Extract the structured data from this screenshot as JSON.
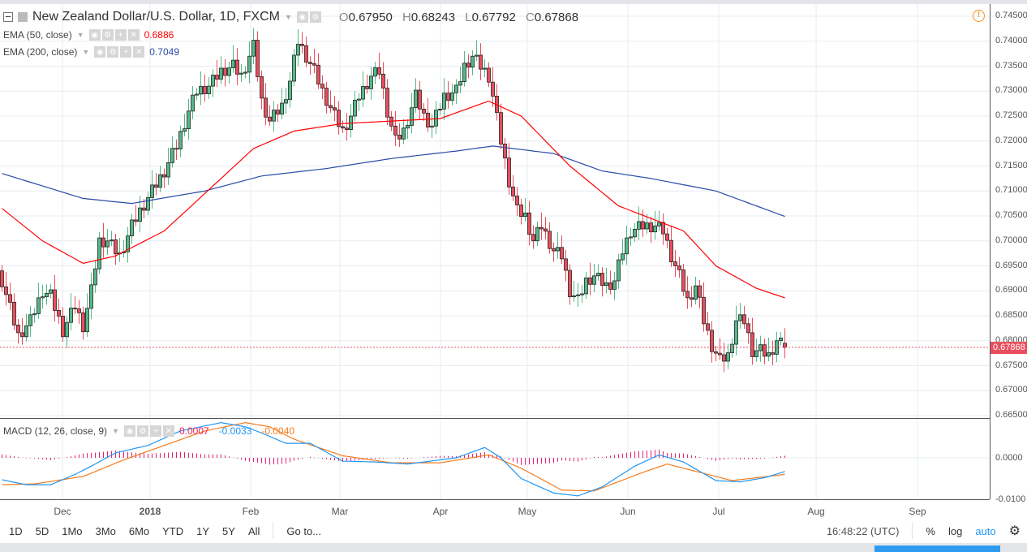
{
  "header": {
    "title": "New Zealand Dollar/U.S. Dollar, 1D, FXCM",
    "open_label": "O",
    "open": "0.67950",
    "high_label": "H",
    "high": "0.68243",
    "low_label": "L",
    "low": "0.67792",
    "close_label": "C",
    "close": "0.67868"
  },
  "indicators": {
    "ema50": {
      "label": "EMA (50, close)",
      "value": "0.6886",
      "color": "#f00"
    },
    "ema200": {
      "label": "EMA (200, close)",
      "value": "0.7049",
      "color": "#2a4ba6"
    },
    "macd": {
      "label": "MACD (12, 26, close, 9)",
      "hist": "0.0007",
      "macd": "-0.0033",
      "signal": "-0.0040"
    }
  },
  "colors": {
    "up": "#53b987",
    "down": "#eb4d5c",
    "macd": "#2196f3",
    "signal": "#f57c1f",
    "hist": "#ec1f6e"
  },
  "price_axis": [
    "0.74500",
    "0.74000",
    "0.73500",
    "0.73000",
    "0.72500",
    "0.72000",
    "0.71500",
    "0.71000",
    "0.70500",
    "0.70000",
    "0.69500",
    "0.69000",
    "0.68500",
    "0.68000",
    "0.67500",
    "0.67000",
    "0.66500"
  ],
  "macd_axis": [
    "0.0000",
    "-0.0100"
  ],
  "current_price": "0.67868",
  "time_axis": [
    "Dec",
    "2018",
    "Feb",
    "Mar",
    "Apr",
    "May",
    "Jun",
    "Jul",
    "Aug",
    "Sep"
  ],
  "toolbar": {
    "ranges": [
      "1D",
      "5D",
      "1Mo",
      "3Mo",
      "6Mo",
      "YTD",
      "1Y",
      "5Y",
      "All"
    ],
    "goto": "Go to...",
    "clock": "16:48:22 (UTC)",
    "percent": "%",
    "log": "log",
    "auto": "auto"
  },
  "chart_data": {
    "type": "candlestick",
    "note": "waypoints are [trading_day_index, price]",
    "close_waypoints": [
      [
        0,
        0.692
      ],
      [
        4,
        0.681
      ],
      [
        7,
        0.684
      ],
      [
        10,
        0.69
      ],
      [
        12,
        0.689
      ],
      [
        15,
        0.682
      ],
      [
        18,
        0.687
      ],
      [
        20,
        0.683
      ],
      [
        22,
        0.69
      ],
      [
        24,
        0.7
      ],
      [
        26,
        0.7
      ],
      [
        29,
        0.697
      ],
      [
        32,
        0.703
      ],
      [
        34,
        0.706
      ],
      [
        37,
        0.71
      ],
      [
        40,
        0.714
      ],
      [
        43,
        0.719
      ],
      [
        46,
        0.726
      ],
      [
        48,
        0.73
      ],
      [
        51,
        0.731
      ],
      [
        54,
        0.734
      ],
      [
        57,
        0.735
      ],
      [
        59,
        0.733
      ],
      [
        62,
        0.739
      ],
      [
        64,
        0.728
      ],
      [
        66,
        0.724
      ],
      [
        69,
        0.727
      ],
      [
        71,
        0.732
      ],
      [
        73,
        0.74
      ],
      [
        75,
        0.737
      ],
      [
        77,
        0.734
      ],
      [
        79,
        0.73
      ],
      [
        82,
        0.725
      ],
      [
        84,
        0.722
      ],
      [
        86,
        0.725
      ],
      [
        88,
        0.729
      ],
      [
        91,
        0.733
      ],
      [
        93,
        0.734
      ],
      [
        95,
        0.726
      ],
      [
        97,
        0.72
      ],
      [
        99,
        0.722
      ],
      [
        102,
        0.729
      ],
      [
        104,
        0.725
      ],
      [
        106,
        0.723
      ],
      [
        109,
        0.729
      ],
      [
        112,
        0.73
      ],
      [
        114,
        0.735
      ],
      [
        116,
        0.737
      ],
      [
        118,
        0.735
      ],
      [
        120,
        0.733
      ],
      [
        121,
        0.729
      ],
      [
        123,
        0.72
      ],
      [
        125,
        0.712
      ],
      [
        127,
        0.706
      ],
      [
        129,
        0.705
      ],
      [
        131,
        0.7
      ],
      [
        133,
        0.703
      ],
      [
        136,
        0.698
      ],
      [
        138,
        0.697
      ],
      [
        140,
        0.69
      ],
      [
        142,
        0.688
      ],
      [
        144,
        0.692
      ],
      [
        146,
        0.693
      ],
      [
        149,
        0.691
      ],
      [
        151,
        0.692
      ],
      [
        153,
        0.698
      ],
      [
        155,
        0.702
      ],
      [
        158,
        0.703
      ],
      [
        161,
        0.703
      ],
      [
        163,
        0.702
      ],
      [
        165,
        0.697
      ],
      [
        167,
        0.693
      ],
      [
        169,
        0.688
      ],
      [
        171,
        0.691
      ],
      [
        173,
        0.684
      ],
      [
        175,
        0.679
      ],
      [
        177,
        0.676
      ],
      [
        179,
        0.677
      ],
      [
        181,
        0.684
      ],
      [
        183,
        0.684
      ],
      [
        185,
        0.678
      ],
      [
        187,
        0.678
      ],
      [
        189,
        0.677
      ],
      [
        191,
        0.68
      ],
      [
        193,
        0.6787
      ]
    ],
    "ema50": [
      [
        0,
        0.7065
      ],
      [
        10,
        0.7
      ],
      [
        20,
        0.6955
      ],
      [
        28,
        0.697
      ],
      [
        40,
        0.702
      ],
      [
        52,
        0.711
      ],
      [
        62,
        0.7185
      ],
      [
        72,
        0.722
      ],
      [
        84,
        0.7235
      ],
      [
        96,
        0.724
      ],
      [
        108,
        0.7245
      ],
      [
        120,
        0.728
      ],
      [
        128,
        0.725
      ],
      [
        140,
        0.715
      ],
      [
        152,
        0.707
      ],
      [
        160,
        0.7045
      ],
      [
        168,
        0.702
      ],
      [
        176,
        0.695
      ],
      [
        186,
        0.6905
      ],
      [
        193,
        0.6886
      ]
    ],
    "ema200": [
      [
        0,
        0.7135
      ],
      [
        20,
        0.7085
      ],
      [
        32,
        0.7075
      ],
      [
        50,
        0.71
      ],
      [
        64,
        0.713
      ],
      [
        80,
        0.7145
      ],
      [
        96,
        0.7165
      ],
      [
        112,
        0.718
      ],
      [
        121,
        0.719
      ],
      [
        136,
        0.7175
      ],
      [
        148,
        0.714
      ],
      [
        160,
        0.7125
      ],
      [
        176,
        0.71
      ],
      [
        193,
        0.7049
      ]
    ],
    "macd_line": [
      [
        0,
        -0.0053
      ],
      [
        6,
        -0.0065
      ],
      [
        12,
        -0.0065
      ],
      [
        18,
        -0.004
      ],
      [
        22,
        -0.002
      ],
      [
        28,
        0.0012
      ],
      [
        36,
        0.003
      ],
      [
        44,
        0.0065
      ],
      [
        54,
        0.0085
      ],
      [
        60,
        0.0075
      ],
      [
        64,
        0.006
      ],
      [
        70,
        0.0035
      ],
      [
        76,
        0.0035
      ],
      [
        84,
        -0.0008
      ],
      [
        92,
        -0.001
      ],
      [
        100,
        -0.0015
      ],
      [
        112,
        0.0
      ],
      [
        119,
        0.0025
      ],
      [
        123,
        0.0
      ],
      [
        128,
        -0.005
      ],
      [
        136,
        -0.0085
      ],
      [
        142,
        -0.0092
      ],
      [
        148,
        -0.007
      ],
      [
        156,
        -0.002
      ],
      [
        162,
        0.0007
      ],
      [
        168,
        -0.001
      ],
      [
        176,
        -0.0055
      ],
      [
        182,
        -0.0058
      ],
      [
        188,
        -0.0048
      ],
      [
        193,
        -0.0033
      ]
    ],
    "signal_line": [
      [
        0,
        -0.0065
      ],
      [
        8,
        -0.0063
      ],
      [
        20,
        -0.0045
      ],
      [
        30,
        -0.0005
      ],
      [
        40,
        0.003
      ],
      [
        50,
        0.0065
      ],
      [
        60,
        0.0085
      ],
      [
        66,
        0.0075
      ],
      [
        72,
        0.0045
      ],
      [
        84,
        0.0005
      ],
      [
        96,
        -0.0012
      ],
      [
        108,
        -0.0012
      ],
      [
        120,
        0.0007
      ],
      [
        128,
        -0.0025
      ],
      [
        138,
        -0.0078
      ],
      [
        146,
        -0.008
      ],
      [
        158,
        -0.0035
      ],
      [
        164,
        -0.0015
      ],
      [
        172,
        -0.0035
      ],
      [
        180,
        -0.0055
      ],
      [
        193,
        -0.004
      ]
    ],
    "ylim": [
      0.665,
      0.745
    ],
    "macd_ylim": [
      -0.0105,
      0.0095
    ]
  }
}
